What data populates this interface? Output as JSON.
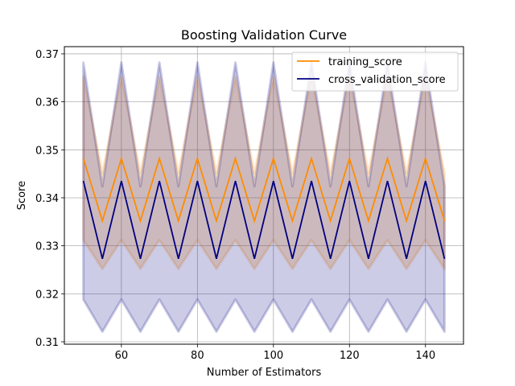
{
  "chart_data": {
    "type": "line",
    "title": "Boosting Validation Curve",
    "xlabel": "Number of Estimators",
    "ylabel": "Score",
    "xlim": [
      45,
      150
    ],
    "ylim": [
      0.3095,
      0.3715
    ],
    "x_ticks": [
      60,
      80,
      100,
      120,
      140
    ],
    "y_ticks": [
      0.31,
      0.32,
      0.33,
      0.34,
      0.35,
      0.36,
      0.37
    ],
    "y_tick_labels": [
      "0.31",
      "0.32",
      "0.33",
      "0.34",
      "0.35",
      "0.36",
      "0.37"
    ],
    "grid": true,
    "legend_position": "top-right",
    "x": [
      50,
      55,
      60,
      65,
      70,
      75,
      80,
      85,
      90,
      95,
      100,
      105,
      110,
      115,
      120,
      125,
      130,
      135,
      140,
      145
    ],
    "series": [
      {
        "name": "training_score",
        "color": "#ff8c00",
        "band_color": "#ff8c00",
        "values": [
          0.3482,
          0.3352,
          0.3482,
          0.3352,
          0.3482,
          0.3352,
          0.3482,
          0.3352,
          0.3482,
          0.3352,
          0.3482,
          0.3352,
          0.3482,
          0.3352,
          0.3482,
          0.3352,
          0.3482,
          0.3352,
          0.3482,
          0.3352
        ],
        "upper": [
          0.3652,
          0.3452,
          0.3652,
          0.3452,
          0.3652,
          0.3452,
          0.3652,
          0.3452,
          0.3652,
          0.3452,
          0.3652,
          0.3452,
          0.3652,
          0.3452,
          0.3652,
          0.3452,
          0.3652,
          0.3452,
          0.3652,
          0.3452
        ],
        "lower": [
          0.3312,
          0.3252,
          0.3312,
          0.3252,
          0.3312,
          0.3252,
          0.3312,
          0.3252,
          0.3312,
          0.3252,
          0.3312,
          0.3252,
          0.3312,
          0.3252,
          0.3312,
          0.3252,
          0.3312,
          0.3252,
          0.3312,
          0.3252
        ]
      },
      {
        "name": "cross_validation_score",
        "color": "#000080",
        "band_color": "#000080",
        "values": [
          0.3435,
          0.3273,
          0.3435,
          0.3273,
          0.3435,
          0.3273,
          0.3435,
          0.3273,
          0.3435,
          0.3273,
          0.3435,
          0.3273,
          0.3435,
          0.3273,
          0.3435,
          0.3273,
          0.3435,
          0.3273,
          0.3435,
          0.3273
        ],
        "upper": [
          0.3682,
          0.3424,
          0.3682,
          0.3424,
          0.3682,
          0.3424,
          0.3682,
          0.3424,
          0.3682,
          0.3424,
          0.3682,
          0.3424,
          0.3682,
          0.3424,
          0.3682,
          0.3424,
          0.3682,
          0.3424,
          0.3682,
          0.3424
        ],
        "lower": [
          0.3188,
          0.3121,
          0.3188,
          0.3121,
          0.3188,
          0.3121,
          0.3188,
          0.3121,
          0.3188,
          0.3121,
          0.3188,
          0.3121,
          0.3188,
          0.3121,
          0.3188,
          0.3121,
          0.3188,
          0.3121,
          0.3188,
          0.3121
        ]
      }
    ]
  }
}
